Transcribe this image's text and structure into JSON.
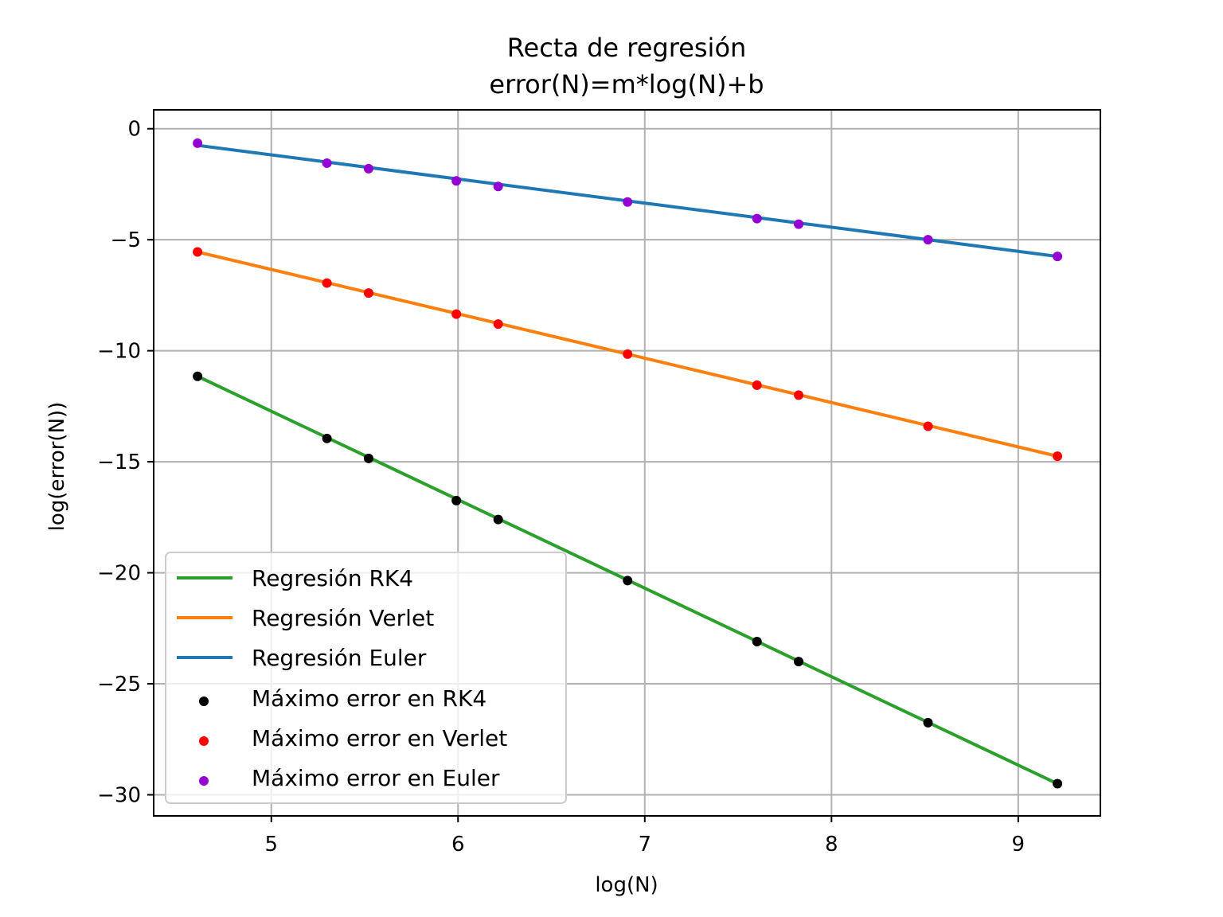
{
  "chart_data": {
    "type": "scatter",
    "title": "Recta de regresión",
    "subtitle": "error(N)=m*log(N)+b",
    "xlabel": "log(N)",
    "ylabel": "log(error(N))",
    "xlim": [
      4.37,
      9.44
    ],
    "ylim": [
      -30.95,
      0.85
    ],
    "xticks": [
      5,
      6,
      7,
      8,
      9
    ],
    "yticks": [
      0,
      -5,
      -10,
      -15,
      -20,
      -25,
      -30
    ],
    "xtick_labels": [
      "5",
      "6",
      "7",
      "8",
      "9"
    ],
    "ytick_labels": [
      "0",
      "−5",
      "−10",
      "−15",
      "−20",
      "−25",
      "−30"
    ],
    "grid": true,
    "legend_position": "lower-left",
    "regression_lines": [
      {
        "name": "Regresión RK4",
        "color": "#2ca02c",
        "x": [
          4.605,
          9.21
        ],
        "y": [
          -11.15,
          -29.5
        ]
      },
      {
        "name": "Regresión Verlet",
        "color": "#ff7f0e",
        "x": [
          4.605,
          9.21
        ],
        "y": [
          -5.55,
          -14.75
        ]
      },
      {
        "name": "Regresión Euler",
        "color": "#1f77b4",
        "x": [
          4.605,
          9.21
        ],
        "y": [
          -0.75,
          -5.75
        ]
      }
    ],
    "scatter_series": [
      {
        "name": "Máximo error en RK4",
        "color": "#000000",
        "x": [
          4.605,
          5.298,
          5.521,
          5.991,
          6.215,
          6.908,
          7.601,
          7.824,
          8.517,
          9.21
        ],
        "y": [
          -11.15,
          -13.95,
          -14.85,
          -16.75,
          -17.6,
          -20.35,
          -23.1,
          -24.0,
          -26.75,
          -29.5
        ]
      },
      {
        "name": "Máximo error en Verlet",
        "color": "#ff0000",
        "x": [
          4.605,
          5.298,
          5.521,
          5.991,
          6.215,
          6.908,
          7.601,
          7.824,
          8.517,
          9.21
        ],
        "y": [
          -5.55,
          -6.95,
          -7.4,
          -8.35,
          -8.8,
          -10.15,
          -11.55,
          -12.0,
          -13.4,
          -14.75
        ]
      },
      {
        "name": "Máximo error en Euler",
        "color": "#9400d3",
        "x": [
          4.605,
          5.298,
          5.521,
          5.991,
          6.215,
          6.908,
          7.601,
          7.824,
          8.517,
          9.21
        ],
        "y": [
          -0.65,
          -1.55,
          -1.8,
          -2.35,
          -2.6,
          -3.3,
          -4.05,
          -4.3,
          -5.0,
          -5.75
        ]
      }
    ]
  }
}
